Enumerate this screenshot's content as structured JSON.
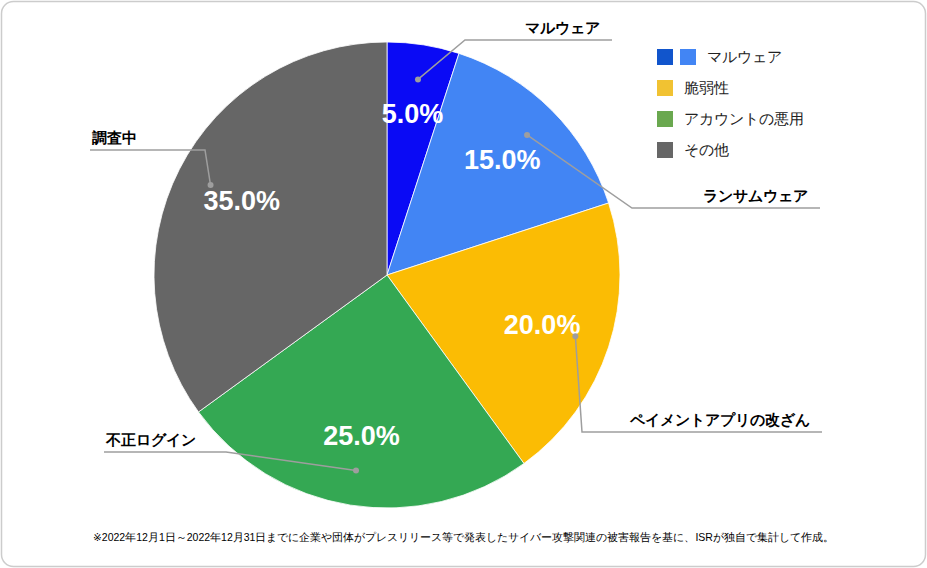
{
  "chart_data": {
    "type": "pie",
    "categories": [
      "マルウェア",
      "ランサムウェア",
      "ペイメントアプリの改ざん",
      "不正ログイン",
      "調査中"
    ],
    "values": [
      5,
      15,
      20,
      25,
      35
    ],
    "value_labels": [
      "5.0%",
      "15.0%",
      "20.0%",
      "25.0%",
      "35.0%"
    ],
    "colors": [
      "#0a0af5",
      "#4285f4",
      "#fbbc04",
      "#34a853",
      "#666666"
    ],
    "data_labels": true,
    "legend": "top-right",
    "legend_entries": [
      {
        "label": "マルウェア",
        "colors": [
          "#1155cc",
          "#4285f4"
        ]
      },
      {
        "label": "脆弱性",
        "colors": [
          "#f1c232"
        ]
      },
      {
        "label": "アカウントの悪用",
        "colors": [
          "#6aa84f"
        ]
      },
      {
        "label": "その他",
        "colors": [
          "#666666"
        ]
      }
    ],
    "footnote": "※2022年12月1日～2022年12月31日までに企業や団体がプレスリリース等で発表したサイバー攻撃関連の被害報告を基に、ISRが独自で集計して作成。"
  }
}
